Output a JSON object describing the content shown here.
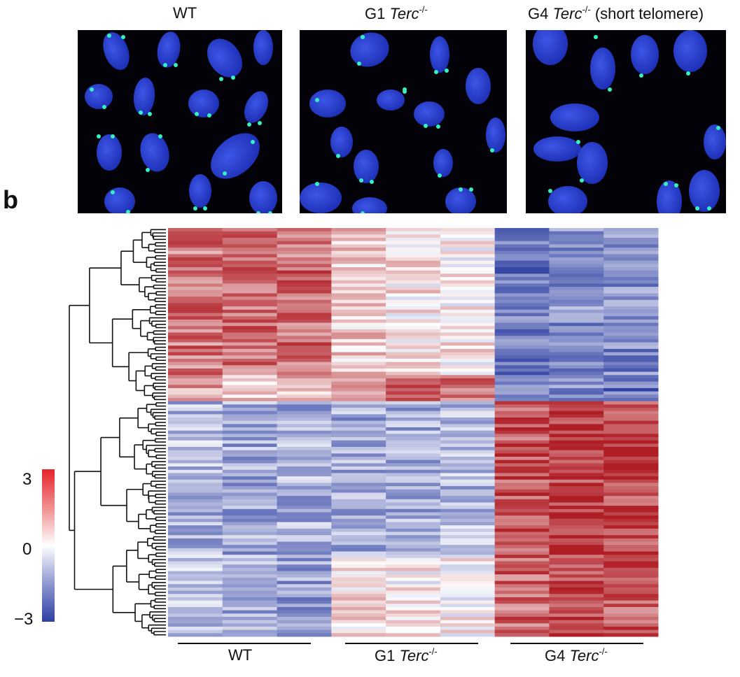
{
  "micrographs": [
    {
      "prefix": "WT",
      "gene": "",
      "sup": "",
      "suffix": ""
    },
    {
      "prefix": "G1 ",
      "gene": "Terc",
      "sup": "-/-",
      "suffix": ""
    },
    {
      "prefix": "G4 ",
      "gene": "Terc",
      "sup": "-/-",
      "suffix": " (short telomere)"
    }
  ],
  "panel_label": "b",
  "color_scale": {
    "max_label": "3",
    "mid_label": "0",
    "min_label": "−3",
    "max": 3,
    "mid": 0,
    "min": -3,
    "colors": {
      "high": "#b01e25",
      "mid": "#ffffff",
      "low": "#2e3fa2"
    }
  },
  "groups": [
    {
      "prefix": "WT",
      "gene": "",
      "sup": ""
    },
    {
      "prefix": "G1 ",
      "gene": "Terc",
      "sup": "-/-"
    },
    {
      "prefix": "G4 ",
      "gene": "Terc",
      "sup": "-/-"
    }
  ],
  "chart_data": {
    "type": "heatmap",
    "columns_per_group": 3,
    "value_range": [
      -3,
      3
    ],
    "clusters": [
      {
        "name": "",
        "rows": 45,
        "profile": [
          1.8,
          2.0,
          1.9,
          0.6,
          0.3,
          0.2,
          -2.0,
          -1.7,
          -1.8
        ]
      },
      {
        "name": "",
        "rows": 8,
        "profile": [
          1.2,
          0.6,
          0.8,
          1.8,
          2.1,
          1.9,
          -2.1,
          -1.9,
          -2.2
        ]
      },
      {
        "name": "",
        "rows": 48,
        "profile": [
          -1.1,
          -1.3,
          -1.2,
          -1.3,
          -1.2,
          -1.1,
          2.3,
          2.6,
          2.5
        ]
      },
      {
        "name": "",
        "rows": 24,
        "profile": [
          -1.0,
          -1.3,
          -1.4,
          0.4,
          0.2,
          0.1,
          2.0,
          2.3,
          2.1
        ]
      }
    ]
  }
}
